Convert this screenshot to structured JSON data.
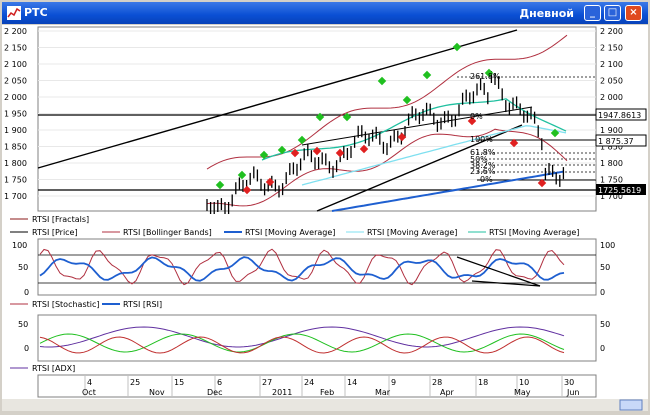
{
  "window": {
    "title": "РТС",
    "mode_label": "Дневной",
    "buttons": {
      "minimize": "_",
      "maximize": "□",
      "close": "×"
    }
  },
  "price_panel": {
    "y_ticks": [
      "2 200",
      "2 150",
      "2 100",
      "2 050",
      "2 000",
      "1 950",
      "1 900",
      "1 850",
      "1 800",
      "1 750",
      "1 700"
    ],
    "right_ticks": [
      "2 200",
      "2 150",
      "2 100",
      "2 050",
      "2 000",
      "1 900",
      "1 850",
      "1 800",
      "1 750",
      "1 700"
    ],
    "level_labels": {
      "price": "1947.8613",
      "last": "1 875.37",
      "low": "1725.5619"
    },
    "fib_labels": [
      "261.8%",
      "0%",
      "100%",
      "61.8%",
      "50%",
      "38.2%",
      "23.6%",
      "0%"
    ],
    "legend": [
      {
        "label": "RTSI [Fractals]",
        "color": "#8b1a1a"
      },
      {
        "label": "RTSI [Price]",
        "color": "#000000"
      },
      {
        "label": "RTSI [Bollinger Bands]",
        "color": "#b03040"
      },
      {
        "label": "RTSI [Moving Average]",
        "color": "#1e5fd0"
      },
      {
        "label": "RTSI [Moving Average]",
        "color": "#7fe0f0"
      },
      {
        "label": "RTSI [Moving Average]",
        "color": "#20c0a0"
      }
    ]
  },
  "osc_panel": {
    "ticks": [
      "100",
      "50",
      "0"
    ],
    "legend": [
      {
        "label": "RTSI [Stochastic]",
        "color": "#b03040"
      },
      {
        "label": "RTSI [RSI]",
        "color": "#1e5fd0"
      }
    ]
  },
  "adx_panel": {
    "ticks": [
      "50",
      "0"
    ],
    "legend": [
      {
        "label": "RTSI [ADX]",
        "color": "#6030a0"
      }
    ]
  },
  "x_axis": {
    "days": [
      "4",
      "25",
      "15",
      "6",
      "27",
      "24",
      "14",
      "9",
      "28",
      "18",
      "10",
      "30"
    ],
    "months": [
      "Oct",
      "Nov",
      "Dec",
      "2011",
      "Feb",
      "Mar",
      "Apr",
      "May",
      "Jun"
    ]
  },
  "colors": {
    "up_fractal": "#20c020",
    "down_fractal": "#e02020",
    "titlebar": "#0a4fd4"
  }
}
